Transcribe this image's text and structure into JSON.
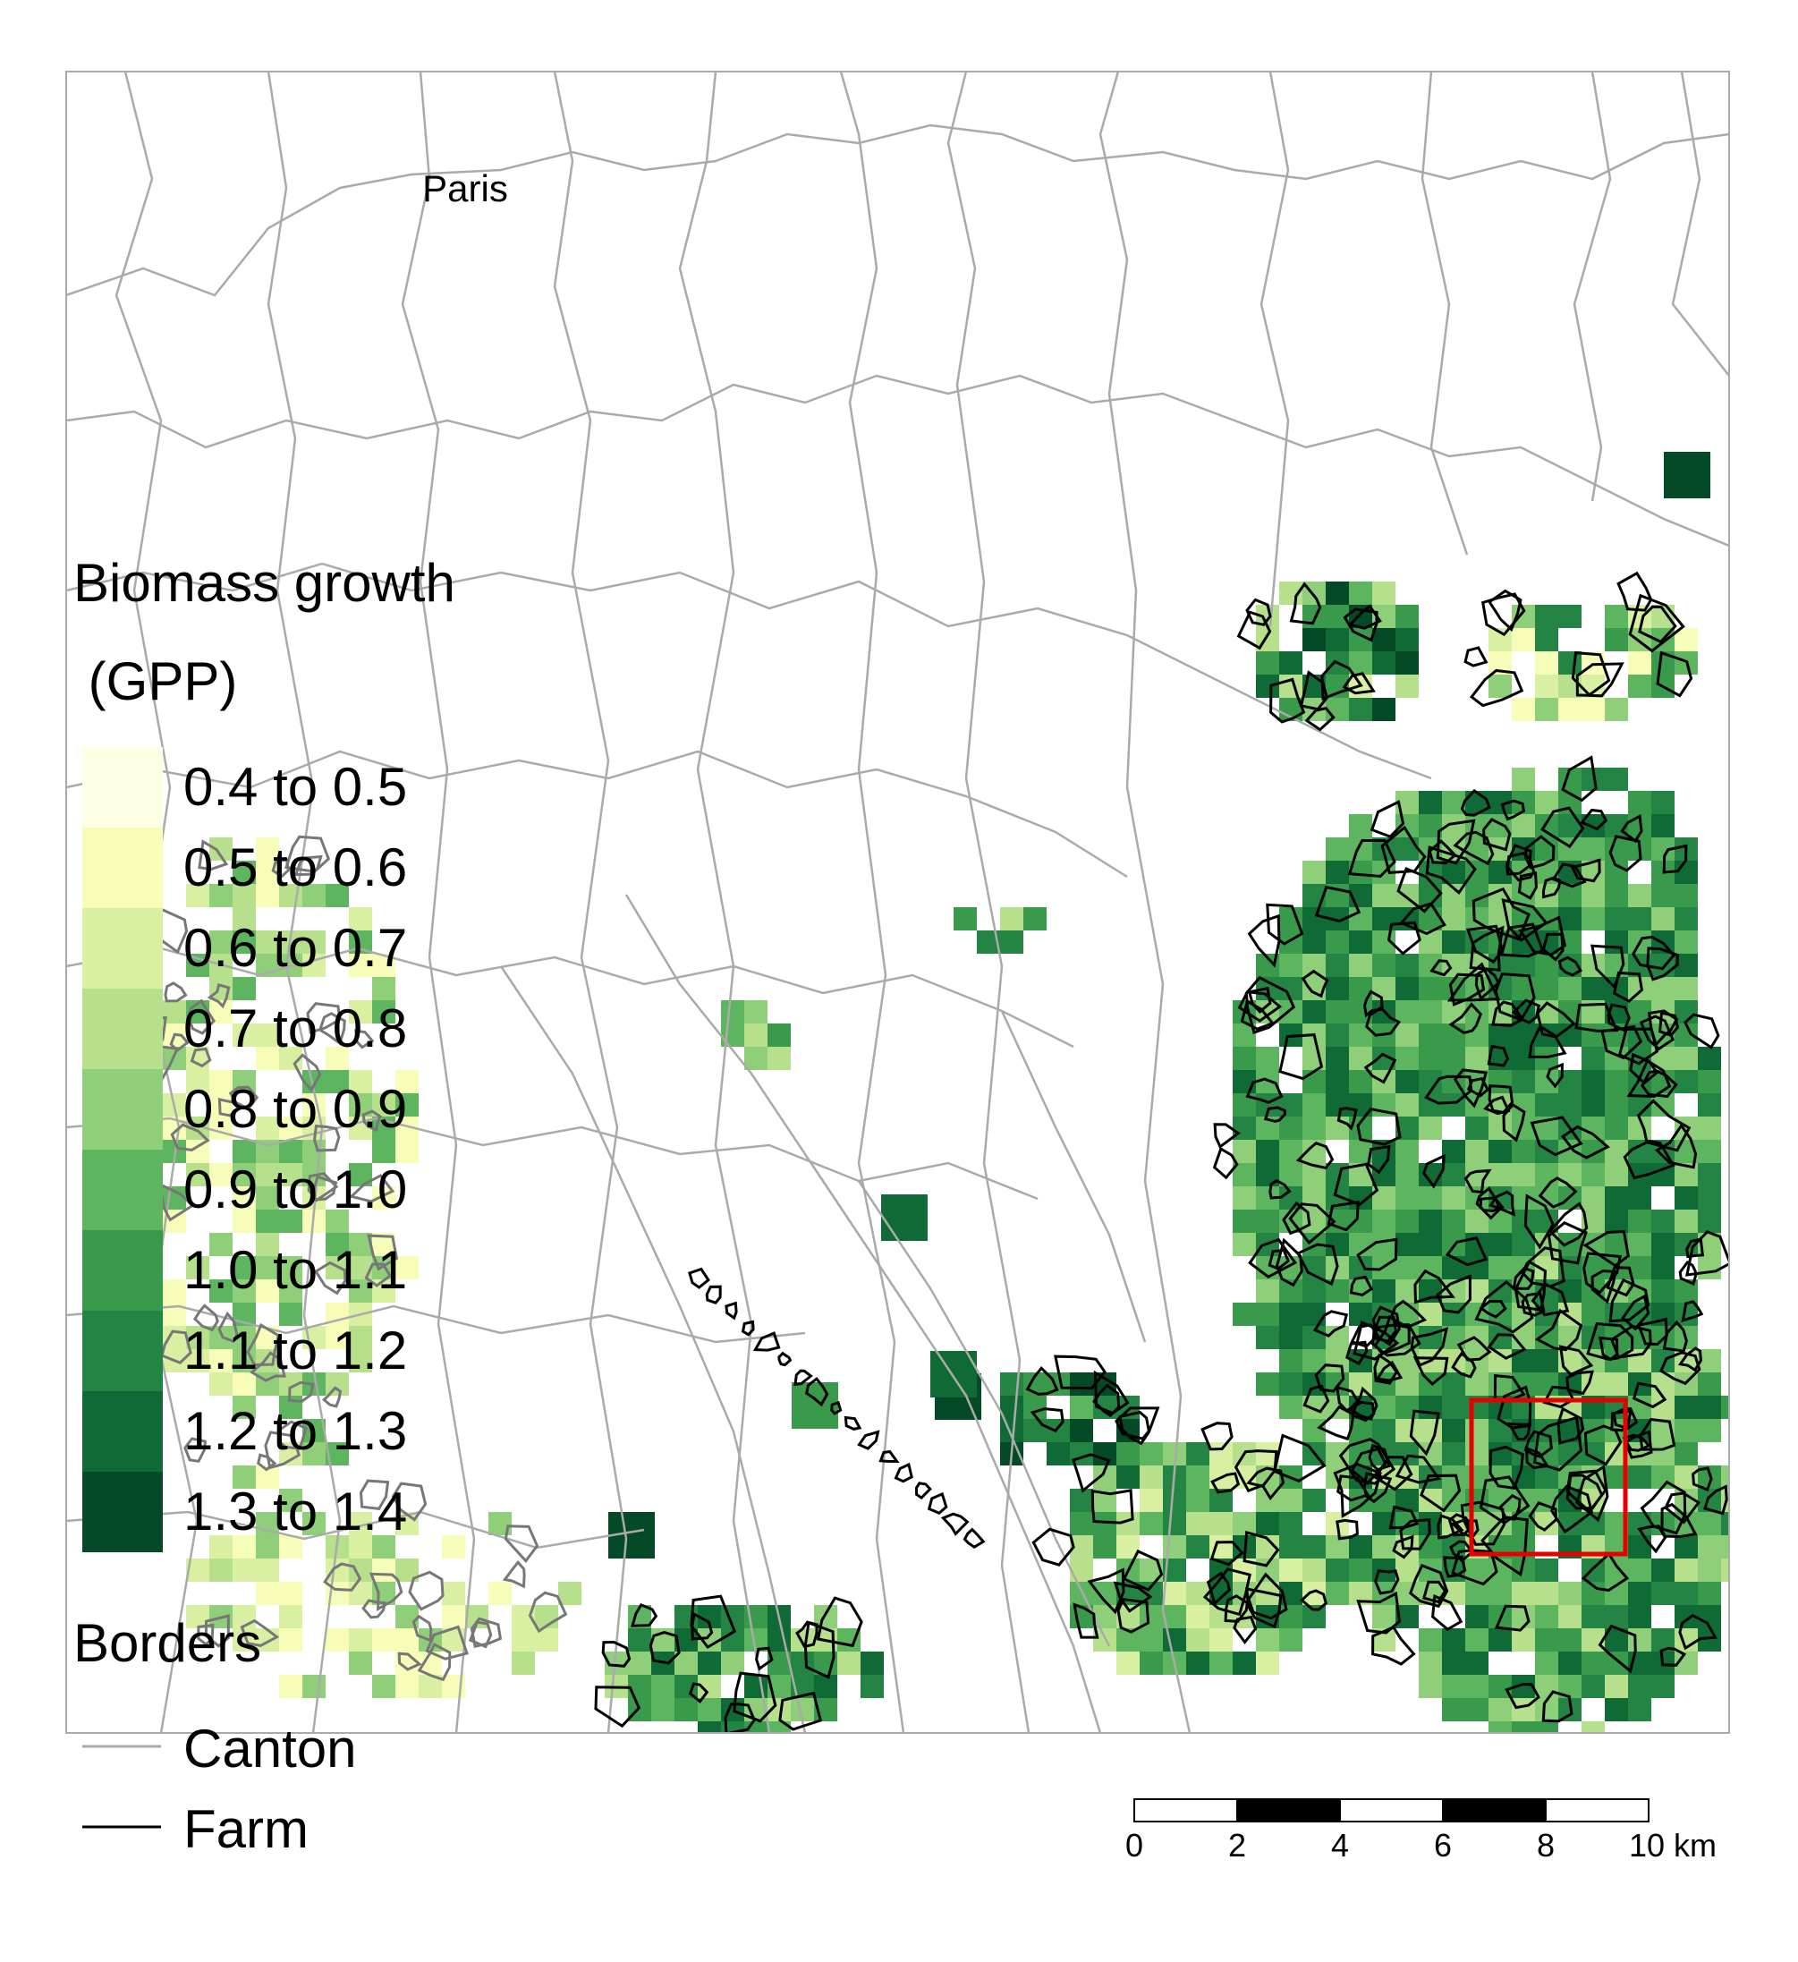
{
  "map": {
    "city_label": "Paris",
    "highlight_color": "#e60000",
    "canton_color": "#aaaaaa",
    "farm_color": "#000000"
  },
  "legend": {
    "title_line1": "Biomass growth",
    "title_line2": " (GPP)",
    "classes": [
      {
        "label": "0.4 to 0.5",
        "color": "#ffffe5"
      },
      {
        "label": "0.5 to 0.6",
        "color": "#f7fcb9"
      },
      {
        "label": "0.6 to 0.7",
        "color": "#d9f0a3"
      },
      {
        "label": "0.7 to 0.8",
        "color": "#b7e08c"
      },
      {
        "label": "0.8 to 0.9",
        "color": "#8fcf7a"
      },
      {
        "label": "0.9 to 1.0",
        "color": "#5db55f"
      },
      {
        "label": "1.0 to 1.1",
        "color": "#3a9a4c"
      },
      {
        "label": "1.1 to 1.2",
        "color": "#238443"
      },
      {
        "label": "1.2 to 1.3",
        "color": "#0f6a35"
      },
      {
        "label": "1.3 to 1.4",
        "color": "#044a26"
      }
    ],
    "borders_title": "Borders",
    "borders": [
      {
        "label": "Canton",
        "color": "#aaaaaa"
      },
      {
        "label": "Farm",
        "color": "#000000"
      }
    ]
  },
  "scale_bar": {
    "ticks": [
      "0",
      "2",
      "4",
      "6",
      "8",
      "10 km"
    ]
  }
}
